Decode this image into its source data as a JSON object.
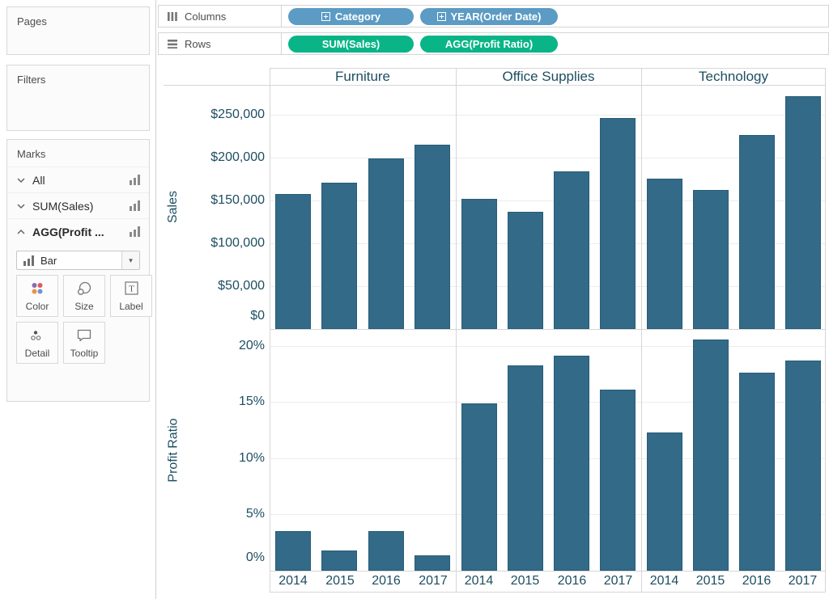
{
  "left_panel": {
    "pages": {
      "title": "Pages"
    },
    "filters": {
      "title": "Filters"
    },
    "marks": {
      "title": "Marks",
      "entries": [
        {
          "label": "All",
          "state": "collapsed"
        },
        {
          "label": "SUM(Sales)",
          "state": "collapsed"
        },
        {
          "label": "AGG(Profit ...",
          "state": "expanded"
        }
      ],
      "mark_type": "Bar",
      "buttons": [
        "Color",
        "Size",
        "Label",
        "Detail",
        "Tooltip"
      ]
    }
  },
  "shelves": {
    "columns_label": "Columns",
    "columns_pills": [
      "Category",
      "YEAR(Order Date)"
    ],
    "rows_label": "Rows",
    "rows_pills": [
      "SUM(Sales)",
      "AGG(Profit Ratio)"
    ]
  },
  "colors": {
    "bar_fill": "#336a87",
    "bar_border": "#275d78",
    "dimension_pill": "#5b9bc4",
    "measure_pill": "#09b586",
    "axis_text": "#1d4e61"
  },
  "chart_data": {
    "type": "bar",
    "categories": [
      "2014",
      "2015",
      "2016",
      "2017"
    ],
    "column_headers": [
      "Furniture",
      "Office Supplies",
      "Technology"
    ],
    "grid": true,
    "legend_position": "none",
    "row_panels": [
      {
        "axis_title": "Sales",
        "format": "currency",
        "ylim": [
          0,
          285000
        ],
        "tick_values": [
          0,
          50000,
          100000,
          150000,
          200000,
          250000
        ],
        "tick_labels": [
          "$0",
          "$50,000",
          "$100,000",
          "$150,000",
          "$200,000",
          "$250,000"
        ],
        "series": [
          {
            "name": "Furniture",
            "values": [
              157193,
              170518,
              198901,
              215387
            ]
          },
          {
            "name": "Office Supplies",
            "values": [
              151776,
              137233,
              183940,
              246097
            ]
          },
          {
            "name": "Technology",
            "values": [
              175278,
              162781,
              226364,
              271730
            ]
          }
        ]
      },
      {
        "axis_title": "Profit Ratio",
        "format": "percent",
        "ylim": [
          0,
          0.215
        ],
        "tick_values": [
          0,
          0.05,
          0.1,
          0.15,
          0.2
        ],
        "tick_labels": [
          "0%",
          "5%",
          "10%",
          "15%",
          "20%"
        ],
        "series": [
          {
            "name": "Furniture",
            "values": [
              0.035,
              0.018,
              0.035,
              0.014
            ]
          },
          {
            "name": "Office Supplies",
            "values": [
              0.149,
              0.183,
              0.191,
              0.161
            ]
          },
          {
            "name": "Technology",
            "values": [
              0.123,
              0.206,
              0.176,
              0.187
            ]
          }
        ]
      }
    ]
  }
}
